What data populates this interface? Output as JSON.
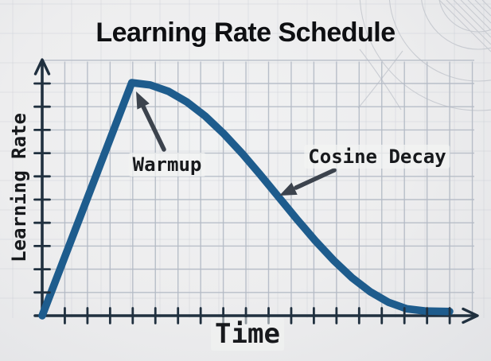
{
  "title": "Learning Rate Schedule",
  "chart_data": {
    "type": "line",
    "title": "Learning Rate Schedule",
    "xlabel": "Time",
    "ylabel": "Learning Rate",
    "x_range": [
      0,
      1
    ],
    "y_range": [
      0,
      1.05
    ],
    "grid": true,
    "axis_tick_labels_shown": false,
    "legend": "none",
    "series": [
      {
        "name": "learning_rate",
        "color": "#1e5c8d",
        "points": [
          [
            0.0,
            0.0
          ],
          [
            0.22,
            1.0
          ],
          [
            0.265,
            0.9906
          ],
          [
            0.31,
            0.9627
          ],
          [
            0.355,
            0.9174
          ],
          [
            0.4,
            0.8565
          ],
          [
            0.445,
            0.7822
          ],
          [
            0.49,
            0.6975
          ],
          [
            0.535,
            0.6056
          ],
          [
            0.58,
            0.51
          ],
          [
            0.625,
            0.4144
          ],
          [
            0.67,
            0.3225
          ],
          [
            0.715,
            0.2378
          ],
          [
            0.76,
            0.1635
          ],
          [
            0.805,
            0.1026
          ],
          [
            0.85,
            0.0573
          ],
          [
            0.895,
            0.0294
          ],
          [
            0.94,
            0.02
          ],
          [
            1.0,
            0.018
          ]
        ]
      }
    ],
    "annotations": [
      {
        "label": "Warmup",
        "target_x": 0.23,
        "target_y": 0.96
      },
      {
        "label": "Cosine Decay",
        "target_x": 0.585,
        "target_y": 0.5
      }
    ]
  },
  "colors": {
    "curve": "#1e5c8d",
    "axis": "#20303f",
    "grid": "#b3bac5",
    "faint_grid": "#c7cbd3",
    "annotation_arrow": "#3c434d",
    "text": "#17191c",
    "background": "#ededee"
  }
}
